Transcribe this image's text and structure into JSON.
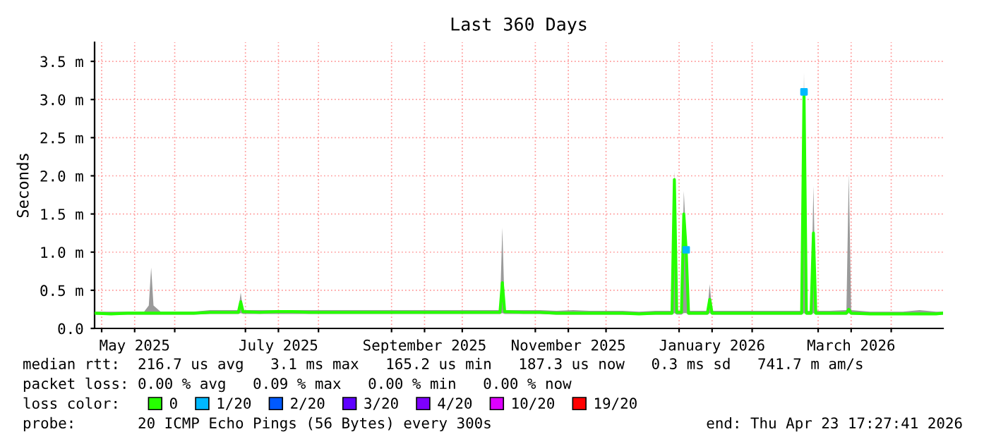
{
  "chart_data": {
    "type": "line",
    "title": "Last 360 Days",
    "ylabel": "Seconds",
    "xlim": [
      "2025-04-28",
      "2026-04-23"
    ],
    "xticks": [
      {
        "value": "2025-05-01",
        "label": null
      },
      {
        "value": "2025-05-15",
        "label": "May 2025"
      },
      {
        "value": "2025-06-01",
        "label": null
      },
      {
        "value": "2025-07-01",
        "label": null
      },
      {
        "value": "2025-07-15",
        "label": "July 2025"
      },
      {
        "value": "2025-08-01",
        "label": null
      },
      {
        "value": "2025-09-01",
        "label": null
      },
      {
        "value": "2025-09-15",
        "label": "September 2025"
      },
      {
        "value": "2025-10-01",
        "label": null
      },
      {
        "value": "2025-11-01",
        "label": null
      },
      {
        "value": "2025-11-15",
        "label": "November 2025"
      },
      {
        "value": "2025-12-01",
        "label": null
      },
      {
        "value": "2026-01-01",
        "label": null
      },
      {
        "value": "2026-01-15",
        "label": "January 2026"
      },
      {
        "value": "2026-02-01",
        "label": null
      },
      {
        "value": "2026-03-01",
        "label": null
      },
      {
        "value": "2026-03-15",
        "label": "March 2026"
      },
      {
        "value": "2026-04-01",
        "label": null
      }
    ],
    "ylim": [
      0,
      3.75
    ],
    "yticks": [
      {
        "value": 0,
        "label": "0.0"
      },
      {
        "value": 0.5,
        "label": "0.5 m"
      },
      {
        "value": 1.0,
        "label": "1.0 m"
      },
      {
        "value": 1.5,
        "label": "1.5 m"
      },
      {
        "value": 2.0,
        "label": "2.0 m"
      },
      {
        "value": 2.5,
        "label": "2.5 m"
      },
      {
        "value": 3.0,
        "label": "3.0 m"
      },
      {
        "value": 3.5,
        "label": "3.5 m"
      }
    ],
    "grid": true,
    "legend": "bottom",
    "x": [
      "2025-04-28",
      "2025-05-05",
      "2025-05-12",
      "2025-05-19",
      "2025-05-21",
      "2025-05-22",
      "2025-05-23",
      "2025-05-26",
      "2025-06-02",
      "2025-06-09",
      "2025-06-16",
      "2025-06-23",
      "2025-06-28",
      "2025-06-29",
      "2025-06-30",
      "2025-07-07",
      "2025-07-14",
      "2025-07-21",
      "2025-07-28",
      "2025-08-04",
      "2025-08-11",
      "2025-08-18",
      "2025-08-25",
      "2025-09-01",
      "2025-09-08",
      "2025-09-15",
      "2025-09-22",
      "2025-09-29",
      "2025-10-06",
      "2025-10-13",
      "2025-10-17",
      "2025-10-18",
      "2025-10-19",
      "2025-10-27",
      "2025-11-03",
      "2025-11-10",
      "2025-11-17",
      "2025-11-24",
      "2025-12-01",
      "2025-12-08",
      "2025-12-15",
      "2025-12-22",
      "2025-12-29",
      "2025-12-30",
      "2025-12-31",
      "2026-01-01",
      "2026-01-02",
      "2026-01-03",
      "2026-01-04",
      "2026-01-05",
      "2026-01-12",
      "2026-01-13",
      "2026-01-14",
      "2026-01-15",
      "2026-01-19",
      "2026-01-26",
      "2026-02-02",
      "2026-02-09",
      "2026-02-16",
      "2026-02-22",
      "2026-02-23",
      "2026-02-24",
      "2026-02-26",
      "2026-02-27",
      "2026-02-28",
      "2026-03-06",
      "2026-03-13",
      "2026-03-14",
      "2026-03-15",
      "2026-03-23",
      "2026-03-30",
      "2026-04-06",
      "2026-04-13",
      "2026-04-20",
      "2026-04-23"
    ],
    "series": [
      {
        "name": "0",
        "color": "#26ff00",
        "values": [
          0.2,
          0.19,
          0.2,
          0.2,
          0.2,
          0.2,
          0.2,
          0.2,
          0.2,
          0.2,
          0.21,
          0.21,
          0.21,
          0.35,
          0.22,
          0.21,
          0.22,
          0.22,
          0.21,
          0.21,
          0.21,
          0.21,
          0.21,
          0.21,
          0.21,
          0.21,
          0.21,
          0.21,
          0.21,
          0.21,
          0.21,
          0.6,
          0.22,
          0.21,
          0.21,
          0.2,
          0.2,
          0.2,
          0.2,
          0.2,
          0.19,
          0.2,
          0.2,
          1.95,
          0.21,
          0.21,
          0.21,
          1.5,
          1.03,
          0.2,
          0.2,
          0.2,
          0.38,
          0.2,
          0.2,
          0.2,
          0.2,
          0.2,
          0.2,
          0.2,
          3.1,
          0.2,
          0.2,
          1.25,
          0.2,
          0.2,
          0.2,
          0.25,
          0.2,
          0.19,
          0.19,
          0.19,
          0.19,
          0.19,
          0.2
        ],
        "lower": [
          0.18,
          0.18,
          0.18,
          0.18,
          0.18,
          0.18,
          0.18,
          0.18,
          0.18,
          0.18,
          0.19,
          0.19,
          0.19,
          0.2,
          0.19,
          0.19,
          0.19,
          0.19,
          0.19,
          0.19,
          0.19,
          0.19,
          0.19,
          0.19,
          0.19,
          0.19,
          0.19,
          0.19,
          0.19,
          0.19,
          0.19,
          0.2,
          0.19,
          0.19,
          0.19,
          0.18,
          0.18,
          0.18,
          0.18,
          0.18,
          0.18,
          0.18,
          0.18,
          0.2,
          0.18,
          0.18,
          0.18,
          0.2,
          0.2,
          0.18,
          0.18,
          0.18,
          0.2,
          0.18,
          0.18,
          0.18,
          0.18,
          0.18,
          0.18,
          0.18,
          0.2,
          0.18,
          0.18,
          0.2,
          0.18,
          0.18,
          0.18,
          0.2,
          0.18,
          0.18,
          0.18,
          0.18,
          0.18,
          0.18,
          0.18
        ],
        "upper": [
          0.22,
          0.22,
          0.22,
          0.22,
          0.3,
          0.8,
          0.3,
          0.22,
          0.22,
          0.22,
          0.24,
          0.24,
          0.24,
          0.47,
          0.24,
          0.24,
          0.24,
          0.24,
          0.24,
          0.24,
          0.24,
          0.24,
          0.24,
          0.24,
          0.24,
          0.24,
          0.24,
          0.24,
          0.24,
          0.24,
          0.24,
          1.32,
          0.24,
          0.24,
          0.24,
          0.23,
          0.24,
          0.23,
          0.23,
          0.23,
          0.22,
          0.23,
          0.23,
          2.07,
          0.24,
          0.23,
          0.23,
          1.8,
          1.19,
          0.23,
          0.23,
          0.23,
          0.58,
          0.23,
          0.23,
          0.23,
          0.23,
          0.23,
          0.23,
          0.23,
          3.36,
          0.23,
          0.23,
          1.87,
          0.23,
          0.23,
          0.24,
          2.03,
          0.24,
          0.22,
          0.22,
          0.22,
          0.24,
          0.22,
          0.22
        ]
      },
      {
        "name": "1/20",
        "type": "scatter",
        "color": "#00b8ff",
        "x": [
          "2026-01-04",
          "2026-02-23"
        ],
        "values": [
          1.03,
          3.1
        ]
      },
      {
        "name": "2/20",
        "type": "scatter",
        "color": "#0059ff",
        "values": [
          null,
          null,
          null,
          null,
          null,
          null,
          null,
          null,
          null,
          null,
          null,
          null,
          null,
          null,
          null,
          null,
          null,
          null,
          null,
          null,
          null,
          null,
          null,
          null,
          null,
          null,
          null,
          null,
          null,
          null,
          null,
          null,
          null,
          null,
          null,
          null,
          null,
          null,
          null,
          null,
          null,
          null,
          null,
          null,
          null,
          null,
          null,
          null,
          null,
          null,
          null,
          null,
          null,
          null,
          null,
          null,
          null,
          null,
          null,
          null,
          null,
          null,
          null,
          null,
          null,
          null,
          null,
          null,
          null,
          null,
          null,
          null,
          null,
          null,
          null
        ]
      },
      {
        "name": "3/20",
        "type": "scatter",
        "color": "#5e00ff",
        "values": [
          null,
          null,
          null,
          null,
          null,
          null,
          null,
          null,
          null,
          null,
          null,
          null,
          null,
          null,
          null,
          null,
          null,
          null,
          null,
          null,
          null,
          null,
          null,
          null,
          null,
          null,
          null,
          null,
          null,
          null,
          null,
          null,
          null,
          null,
          null,
          null,
          null,
          null,
          null,
          null,
          null,
          null,
          null,
          null,
          null,
          null,
          null,
          null,
          null,
          null,
          null,
          null,
          null,
          null,
          null,
          null,
          null,
          null,
          null,
          null,
          null,
          null,
          null,
          null,
          null,
          null,
          null,
          null,
          null,
          null,
          null,
          null,
          null,
          null,
          null
        ]
      },
      {
        "name": "4/20",
        "type": "scatter",
        "color": "#7e00ff",
        "values": [
          null,
          null,
          null,
          null,
          null,
          null,
          null,
          null,
          null,
          null,
          null,
          null,
          null,
          null,
          null,
          null,
          null,
          null,
          null,
          null,
          null,
          null,
          null,
          null,
          null,
          null,
          null,
          null,
          null,
          null,
          null,
          null,
          null,
          null,
          null,
          null,
          null,
          null,
          null,
          null,
          null,
          null,
          null,
          null,
          null,
          null,
          null,
          null,
          null,
          null,
          null,
          null,
          null,
          null,
          null,
          null,
          null,
          null,
          null,
          null,
          null,
          null,
          null,
          null,
          null,
          null,
          null,
          null,
          null,
          null,
          null,
          null,
          null,
          null,
          null
        ]
      },
      {
        "name": "10/20",
        "type": "scatter",
        "color": "#dd00ff",
        "values": [
          null,
          null,
          null,
          null,
          null,
          null,
          null,
          null,
          null,
          null,
          null,
          null,
          null,
          null,
          null,
          null,
          null,
          null,
          null,
          null,
          null,
          null,
          null,
          null,
          null,
          null,
          null,
          null,
          null,
          null,
          null,
          null,
          null,
          null,
          null,
          null,
          null,
          null,
          null,
          null,
          null,
          null,
          null,
          null,
          null,
          null,
          null,
          null,
          null,
          null,
          null,
          null,
          null,
          null,
          null,
          null,
          null,
          null,
          null,
          null,
          null,
          null,
          null,
          null,
          null,
          null,
          null,
          null,
          null,
          null,
          null,
          null,
          null,
          null,
          null
        ]
      },
      {
        "name": "19/20",
        "type": "scatter",
        "color": "#ff0000",
        "values": [
          null,
          null,
          null,
          null,
          null,
          null,
          null,
          null,
          null,
          null,
          null,
          null,
          null,
          null,
          null,
          null,
          null,
          null,
          null,
          null,
          null,
          null,
          null,
          null,
          null,
          null,
          null,
          null,
          null,
          null,
          null,
          null,
          null,
          null,
          null,
          null,
          null,
          null,
          null,
          null,
          null,
          null,
          null,
          null,
          null,
          null,
          null,
          null,
          null,
          null,
          null,
          null,
          null,
          null,
          null,
          null,
          null,
          null,
          null,
          null,
          null,
          null,
          null,
          null,
          null,
          null,
          null,
          null,
          null,
          null,
          null,
          null,
          null,
          null,
          null
        ]
      }
    ],
    "annotations": [
      "median rtt:  216.7 us avg   3.1 ms max   165.2 us min   187.3 us now   0.3 ms sd   741.7 m am/s",
      "packet loss: 0.00 % avg   0.09 % max   0.00 % min   0.00 % now",
      "loss color:",
      "probe:       20 ICMP Echo Pings (56 Bytes) every 300s",
      "end: Thu Apr 23 17:27:41 2026"
    ]
  }
}
